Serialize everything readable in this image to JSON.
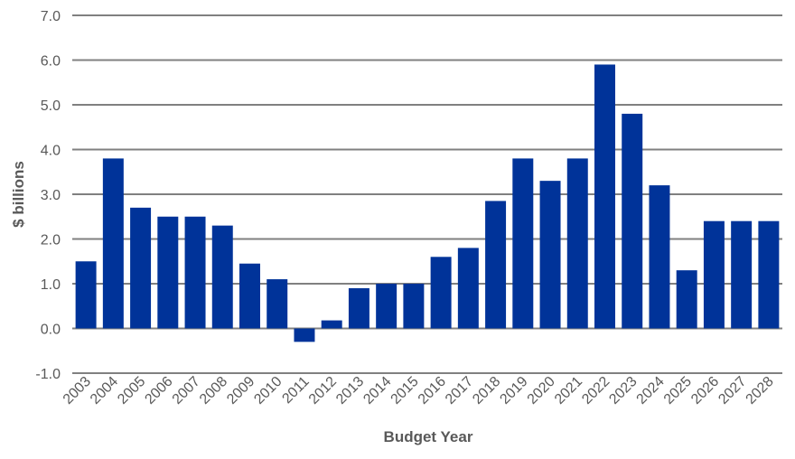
{
  "chart_data": {
    "type": "bar",
    "title": "",
    "xlabel": "Budget Year",
    "ylabel": "$ billions",
    "ylim": [
      -1.0,
      7.0
    ],
    "yticks": [
      "-1.0",
      "0.0",
      "1.0",
      "2.0",
      "3.0",
      "4.0",
      "5.0",
      "6.0",
      "7.0"
    ],
    "grid": true,
    "legend": "none",
    "bar_color": "#003399",
    "categories": [
      "2003",
      "2004",
      "2005",
      "2006",
      "2007",
      "2008",
      "2009",
      "2010",
      "2011",
      "2012",
      "2013",
      "2014",
      "2015",
      "2016",
      "2017",
      "2018",
      "2019",
      "2020",
      "2021",
      "2022",
      "2023",
      "2024",
      "2025",
      "2026",
      "2027",
      "2028"
    ],
    "values": [
      1.5,
      3.8,
      2.7,
      2.5,
      2.5,
      2.3,
      1.45,
      1.1,
      -0.3,
      0.18,
      0.9,
      1.0,
      1.0,
      1.6,
      1.8,
      2.85,
      3.8,
      3.3,
      3.8,
      5.9,
      4.8,
      3.2,
      1.3,
      2.4,
      2.4,
      2.4
    ]
  }
}
